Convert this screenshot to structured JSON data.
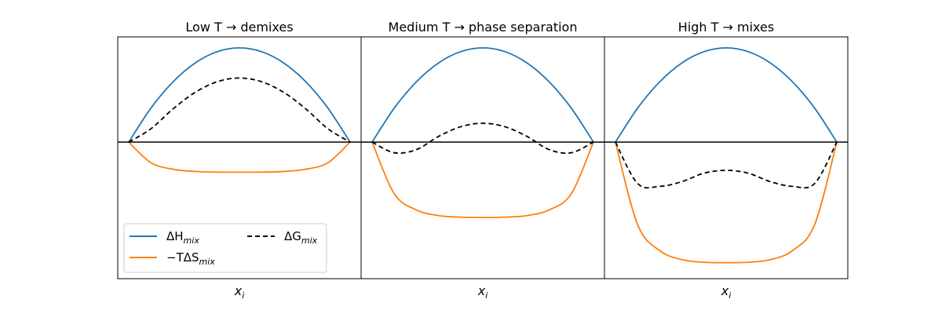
{
  "chart_data": [
    {
      "type": "line",
      "title": "Low T → demixes",
      "xlabel": "x_i",
      "ylabel": "",
      "xlim": [
        0,
        1
      ],
      "grid": false,
      "series": [
        {
          "name": "ΔH_mix",
          "color": "#1f77b4",
          "style": "solid",
          "x": [
            0,
            0.1,
            0.2,
            0.3,
            0.4,
            0.5,
            0.6,
            0.7,
            0.8,
            0.9,
            1
          ],
          "y": [
            0,
            0.36,
            0.64,
            0.84,
            0.96,
            1.0,
            0.96,
            0.84,
            0.64,
            0.36,
            0
          ]
        },
        {
          "name": "−TΔS_mix",
          "color": "#ff7f0e",
          "style": "solid",
          "x": [
            0,
            0.1,
            0.2,
            0.3,
            0.4,
            0.5,
            0.6,
            0.7,
            0.8,
            0.9,
            1
          ],
          "y": [
            0,
            -0.219,
            -0.288,
            -0.312,
            -0.319,
            -0.32,
            -0.319,
            -0.312,
            -0.288,
            -0.219,
            0
          ]
        },
        {
          "name": "ΔG_mix",
          "color": "#000000",
          "style": "dashed",
          "x": [
            0,
            0.1,
            0.2,
            0.3,
            0.4,
            0.5,
            0.6,
            0.7,
            0.8,
            0.9,
            1
          ],
          "y": [
            0,
            0.141,
            0.352,
            0.528,
            0.641,
            0.68,
            0.641,
            0.528,
            0.352,
            0.141,
            0
          ]
        }
      ]
    },
    {
      "type": "line",
      "title": "Medium T → phase separation",
      "xlabel": "x_i",
      "ylabel": "",
      "xlim": [
        0,
        1
      ],
      "grid": false,
      "series": [
        {
          "name": "ΔH_mix",
          "color": "#1f77b4",
          "style": "solid",
          "x": [
            0,
            0.1,
            0.2,
            0.3,
            0.4,
            0.5,
            0.6,
            0.7,
            0.8,
            0.9,
            1
          ],
          "y": [
            0,
            0.36,
            0.64,
            0.84,
            0.96,
            1.0,
            0.96,
            0.84,
            0.64,
            0.36,
            0
          ]
        },
        {
          "name": "−TΔS_mix",
          "color": "#ff7f0e",
          "style": "solid",
          "x": [
            0,
            0.1,
            0.2,
            0.3,
            0.4,
            0.5,
            0.6,
            0.7,
            0.8,
            0.9,
            1
          ],
          "y": [
            0,
            -0.548,
            -0.72,
            -0.78,
            -0.797,
            -0.8,
            -0.797,
            -0.78,
            -0.72,
            -0.548,
            0
          ]
        },
        {
          "name": "ΔG_mix",
          "color": "#000000",
          "style": "dashed",
          "x": [
            0,
            0.1,
            0.2,
            0.3,
            0.4,
            0.5,
            0.6,
            0.7,
            0.8,
            0.9,
            1
          ],
          "y": [
            0,
            -0.113,
            -0.08,
            0.06,
            0.163,
            0.2,
            0.163,
            0.06,
            -0.08,
            -0.113,
            0
          ]
        }
      ]
    },
    {
      "type": "line",
      "title": "High T → mixes",
      "xlabel": "x_i",
      "ylabel": "",
      "xlim": [
        0,
        1
      ],
      "grid": false,
      "series": [
        {
          "name": "ΔH_mix",
          "color": "#1f77b4",
          "style": "solid",
          "x": [
            0,
            0.1,
            0.2,
            0.3,
            0.4,
            0.5,
            0.6,
            0.7,
            0.8,
            0.9,
            1
          ],
          "y": [
            0,
            0.36,
            0.64,
            0.84,
            0.96,
            1.0,
            0.96,
            0.84,
            0.64,
            0.36,
            0
          ]
        },
        {
          "name": "−TΔS_mix",
          "color": "#ff7f0e",
          "style": "solid",
          "x": [
            0,
            0.1,
            0.2,
            0.3,
            0.4,
            0.5,
            0.6,
            0.7,
            0.8,
            0.9,
            1
          ],
          "y": [
            0,
            -0.876,
            -1.152,
            -1.248,
            -1.276,
            -1.28,
            -1.276,
            -1.248,
            -1.152,
            -0.876,
            0
          ]
        },
        {
          "name": "ΔG_mix",
          "color": "#000000",
          "style": "dashed",
          "x": [
            0,
            0.1,
            0.2,
            0.3,
            0.4,
            0.5,
            0.6,
            0.7,
            0.8,
            0.9,
            1
          ],
          "y": [
            0,
            -0.44,
            -0.47,
            -0.42,
            -0.33,
            -0.3,
            -0.33,
            -0.42,
            -0.47,
            -0.44,
            0
          ]
        }
      ]
    }
  ],
  "legend": {
    "placement": "lower-left of first panel",
    "entries": [
      {
        "base": "ΔH",
        "sub": "mix",
        "color": "#1f77b4",
        "style": "solid"
      },
      {
        "base": "−TΔS",
        "sub": "mix",
        "color": "#ff7f0e",
        "style": "solid"
      },
      {
        "base": "ΔG",
        "sub": "mix",
        "color": "#000000",
        "style": "dashed"
      }
    ]
  },
  "xlabel_parts": {
    "base": "x",
    "sub": "i"
  }
}
